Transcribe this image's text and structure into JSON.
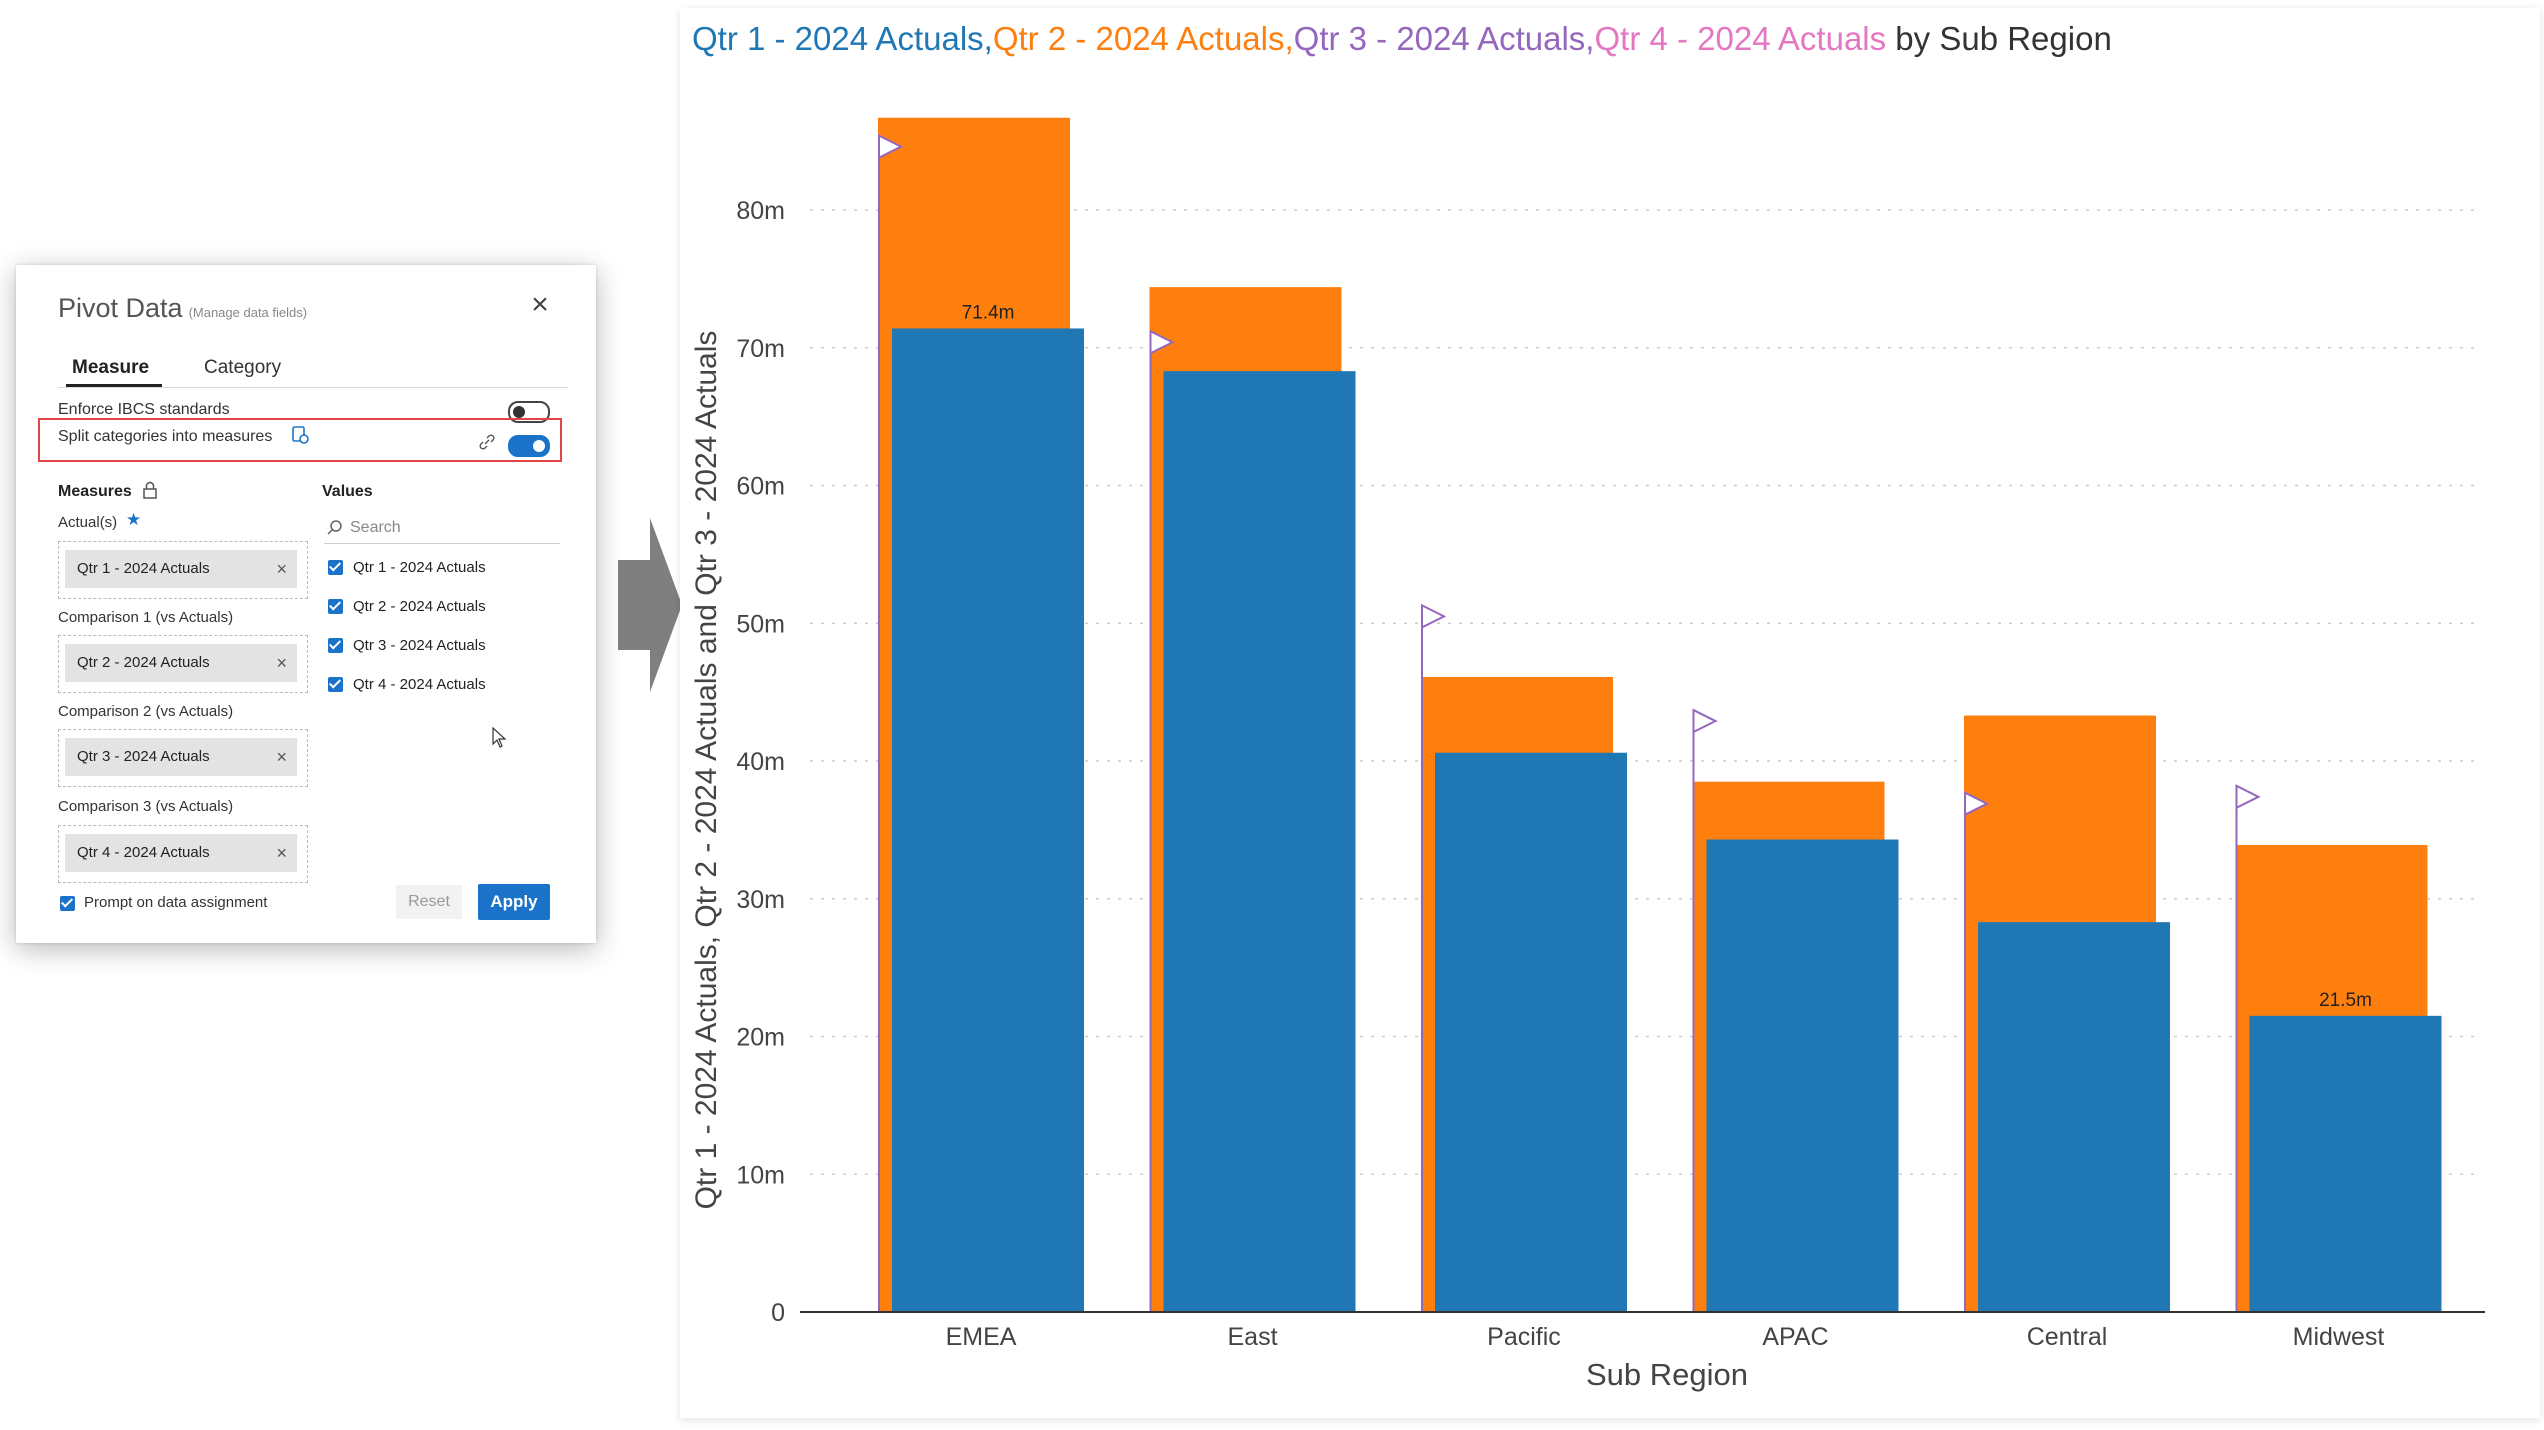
{
  "panel": {
    "title": "Pivot Data",
    "subtitle": "(Manage data fields)",
    "close_glyph": "×",
    "tabs": [
      "Measure",
      "Category"
    ],
    "enforce_label": "Enforce IBCS standards",
    "split_label": "Split categories into measures",
    "measures_heading": "Measures",
    "values_heading": "Values",
    "search_placeholder": "Search",
    "actuals_label": "Actual(s)",
    "slots": [
      {
        "label": "",
        "chip": "Qtr 1 - 2024 Actuals"
      },
      {
        "label": "Comparison 1 (vs Actuals)",
        "chip": "Qtr 2 - 2024 Actuals"
      },
      {
        "label": "Comparison 2 (vs Actuals)",
        "chip": "Qtr 3 - 2024 Actuals"
      },
      {
        "label": "Comparison 3 (vs Actuals)",
        "chip": "Qtr 4 - 2024 Actuals"
      }
    ],
    "values": [
      "Qtr 1 - 2024 Actuals",
      "Qtr 2 - 2024 Actuals",
      "Qtr 3 - 2024 Actuals",
      "Qtr 4 - 2024 Actuals"
    ],
    "prompt_label": "Prompt on data assignment",
    "reset_label": "Reset",
    "apply_label": "Apply",
    "accent": "#1a73c9",
    "highlight_color": "#e14444"
  },
  "chart_data": {
    "type": "bar",
    "title_parts": [
      {
        "text": "Qtr 1 - 2024 Actuals,",
        "color": "#1f77b4"
      },
      {
        "text": "Qtr 2 - 2024 Actuals,",
        "color": "#ff7f0e"
      },
      {
        "text": "Qtr 3 - 2024 Actuals,",
        "color": "#9467bd"
      },
      {
        "text": "Qtr 4 - 2024 Actuals",
        "color": "#e377c2"
      },
      {
        "text": " by Sub Region",
        "color": "#333333"
      }
    ],
    "ylabel": "Qtr 1 - 2024 Actuals, Qtr 2 - 2024 Actuals and Qtr 3 - 2024 Actuals",
    "xlabel": "Sub Region",
    "categories": [
      "EMEA",
      "East",
      "Pacific",
      "APAC",
      "Central",
      "Midwest"
    ],
    "yticks": [
      0,
      10,
      20,
      30,
      40,
      50,
      60,
      70,
      80
    ],
    "ytick_labels": [
      "0",
      "10m",
      "20m",
      "30m",
      "40m",
      "50m",
      "60m",
      "70m",
      "80m"
    ],
    "ylim": [
      0,
      85
    ],
    "series": [
      {
        "name": "Qtr 1 - 2024 Actuals",
        "color": "#1f77b4",
        "values": [
          71.4,
          68.3,
          40.6,
          34.3,
          28.3,
          21.5
        ]
      },
      {
        "name": "Qtr 2 - 2024 Actuals",
        "color": "#ff7f0e",
        "values": [
          86.7,
          74.4,
          46.1,
          38.5,
          43.3,
          33.9
        ]
      },
      {
        "name": "Qtr 3 - 2024 Actuals",
        "color": "#9467bd",
        "values": [
          84.6,
          70.4,
          50.5,
          42.9,
          36.9,
          37.4
        ]
      }
    ],
    "data_labels": [
      {
        "category": "EMEA",
        "text": "71.4m"
      },
      {
        "category": "Midwest",
        "text": "21.5m"
      }
    ],
    "grid": true,
    "legend": "none"
  }
}
